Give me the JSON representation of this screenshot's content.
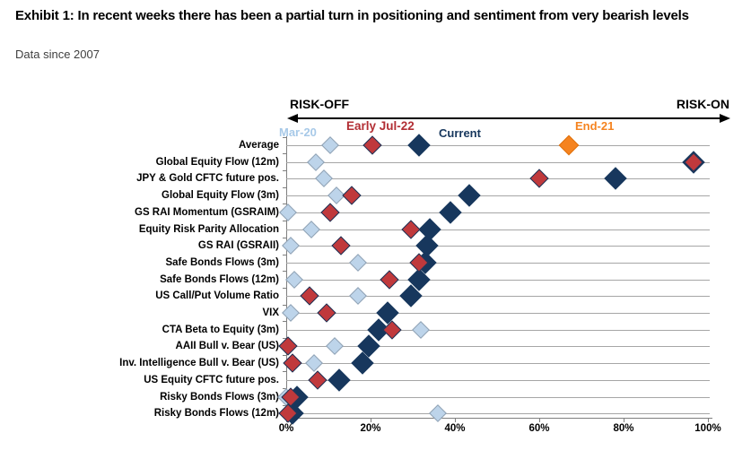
{
  "header": {
    "title": "Exhibit 1: In recent weeks there has been a partial turn in positioning and sentiment from very bearish levels",
    "subtitle": "Data since 2007"
  },
  "chart_data": {
    "type": "scatter",
    "variant": "percentile-dot-plot",
    "title": "Exhibit 1: In recent weeks there has been a partial turn in positioning and sentiment from very bearish levels",
    "subtitle": "Data since 2007",
    "axis_annotations": {
      "left": "RISK-OFF",
      "right": "RISK-ON"
    },
    "xlabel": "",
    "ylabel": "",
    "xlim": [
      0,
      100
    ],
    "x_tick_labels": [
      "0%",
      "20%",
      "40%",
      "60%",
      "80%",
      "100%"
    ],
    "x_tick_values": [
      0,
      20,
      40,
      60,
      80,
      100
    ],
    "grid": "horizontal-category-lines",
    "legend_position": "top-inline",
    "categories": [
      "Average",
      "Global Equity Flow (12m)",
      "JPY & Gold CFTC future pos.",
      "Global Equity Flow (3m)",
      "GS RAI Momentum (GSRAIM)",
      "Equity Risk Parity Allocation",
      "GS RAI (GSRAII)",
      "Safe Bonds Flows (3m)",
      "Safe Bonds Flows (12m)",
      "US Call/Put Volume Ratio",
      "VIX",
      "CTA Beta to Equity (3m)",
      "AAII Bull v. Bear (US)",
      "Inv. Intelligence Bull v. Bear (US)",
      "US Equity CFTC future pos.",
      "Risky Bonds Flows (3m)",
      "Risky Bonds Flows (12m)"
    ],
    "series": [
      {
        "name": "Mar-20",
        "marker": "diamond",
        "color": "#BDD4EA",
        "border_color": "#8FA1B3",
        "label_color": "#A7C9E8",
        "size": 14,
        "z": 1,
        "values": [
          10.5,
          7,
          9,
          12,
          0.5,
          6,
          1,
          17,
          2,
          17,
          1,
          32,
          11.5,
          6.5,
          12.5,
          0,
          36
        ]
      },
      {
        "name": "Early Jul-22",
        "marker": "diamond",
        "color": "#C0393C",
        "border_color": "#16365C",
        "label_color": "#B22E34",
        "size": 15,
        "z": 3,
        "values": [
          20.5,
          96.5,
          60,
          15.5,
          10.5,
          29.5,
          13,
          31.5,
          24.5,
          5.5,
          9.5,
          25,
          0.5,
          1.5,
          7.5,
          1,
          0.5
        ]
      },
      {
        "name": "Current",
        "marker": "diamond",
        "color": "#17375D",
        "border_color": "#17375D",
        "label_color": "#17375D",
        "size": 18,
        "z": 2,
        "values": [
          31.5,
          96.5,
          78,
          43.5,
          39,
          34,
          33.5,
          33,
          31.5,
          29.5,
          24,
          22,
          19.5,
          18,
          12.5,
          2.5,
          1.5
        ]
      },
      {
        "name": "End-21",
        "marker": "diamond",
        "color": "#F5831F",
        "border_color": "#E0720D",
        "label_color": "#F5831F",
        "size": 16,
        "z": 4,
        "values": [
          67,
          null,
          null,
          null,
          null,
          null,
          null,
          null,
          null,
          null,
          null,
          null,
          null,
          null,
          null,
          null,
          null
        ]
      }
    ]
  }
}
